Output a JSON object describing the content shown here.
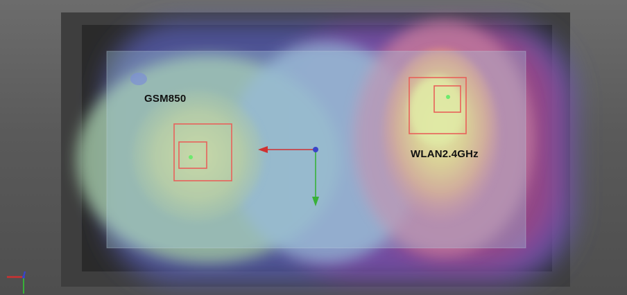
{
  "annotations": {
    "left_antenna": "GSM850",
    "right_antenna": "WLAN2.4GHz"
  },
  "colors": {
    "background": "#5a5a5a",
    "device_outer": "#3d3d3d",
    "device_inner": "#2a2a2a",
    "probe_box": "#e8605a",
    "axis_x": "#d03030",
    "axis_y": "#38b038",
    "axis_z": "#3a44c8",
    "hotspot": "#f6f07a",
    "field_low": "#7da6d8"
  },
  "icons": {
    "origin_triad": "xyz-axis-triad-icon",
    "center_gizmo": "transform-gizmo-icon"
  }
}
